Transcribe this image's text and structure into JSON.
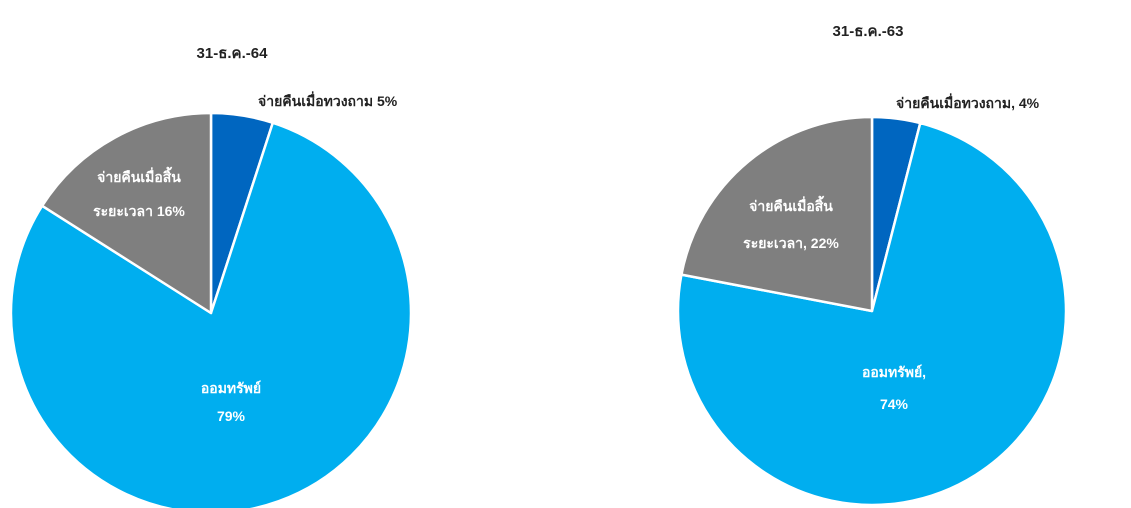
{
  "chart_data": [
    {
      "type": "pie",
      "title": "31-ธ.ค.-64",
      "slices": [
        {
          "name": "จ่ายคืนเมื่อทวงถาม",
          "value": 5,
          "label_lines": [
            "จ่ายคืนเมื่อทวงถาม  5%"
          ],
          "color": "#0066c0"
        },
        {
          "name": "ออมทรัพย์",
          "value": 79,
          "label_lines": [
            "ออมทรัพย์",
            "79%"
          ],
          "color": "#00aeef"
        },
        {
          "name": "จ่ายคืนเมื่อสิ้นระยะเวลา",
          "value": 16,
          "label_lines": [
            "จ่ายคืนเมื่อสิ้น",
            "ระยะเวลา 16%"
          ],
          "color": "#7f7f7f"
        }
      ]
    },
    {
      "type": "pie",
      "title": "31-ธ.ค.-63",
      "slices": [
        {
          "name": "จ่ายคืนเมื่อทวงถาม",
          "value": 4,
          "label_lines": [
            "จ่ายคืนเมื่อทวงถาม, 4%"
          ],
          "color": "#0066c0"
        },
        {
          "name": "ออมทรัพย์",
          "value": 74,
          "label_lines": [
            "ออมทรัพย์,",
            "74%"
          ],
          "color": "#00aeef"
        },
        {
          "name": "จ่ายคืนเมื่อสิ้นระยะเวลา",
          "value": 22,
          "label_lines": [
            "จ่ายคืนเมื่อสิ้น",
            "ระยะเวลา, 22%"
          ],
          "color": "#7f7f7f"
        }
      ]
    }
  ]
}
